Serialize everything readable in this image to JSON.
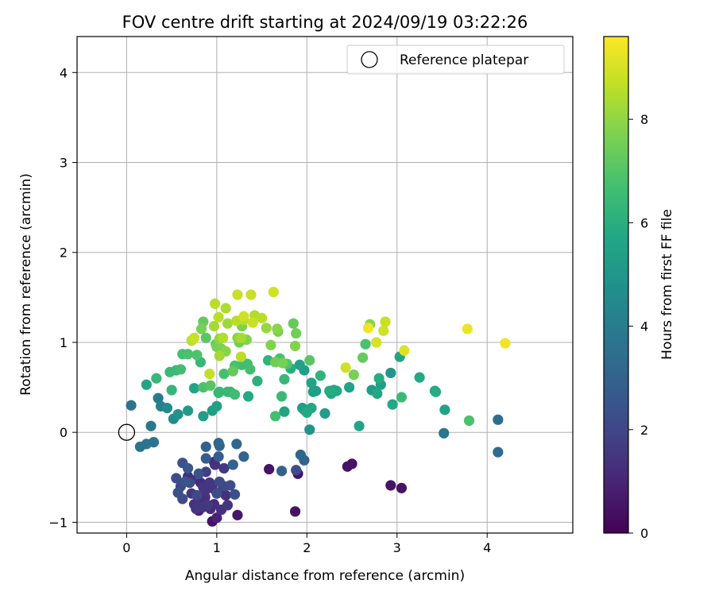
{
  "chart_data": {
    "type": "scatter",
    "title": "FOV centre drift starting at 2024/09/19 03:22:26",
    "xlabel": "Angular distance from reference (arcmin)",
    "ylabel": "Rotation from reference (arcmin)",
    "xlim": [
      -0.55,
      4.95
    ],
    "ylim": [
      -1.12,
      4.4
    ],
    "xticks": [
      "0",
      "1",
      "2",
      "3",
      "4"
    ],
    "yticks": [
      "−1",
      "0",
      "1",
      "2",
      "3",
      "4"
    ],
    "grid": true,
    "legend": {
      "placement": "upper-right",
      "entries": [
        "Reference platepar"
      ]
    },
    "reference_point": {
      "x": 0,
      "y": 0
    },
    "colorbar": {
      "label": "Hours from first FF file",
      "min": 0,
      "max": 9.6,
      "ticks": [
        "0",
        "2",
        "4",
        "6",
        "8"
      ],
      "colormap": "viridis"
    },
    "series": [
      {
        "color_by": "hours",
        "points": [
          [
            0.05,
            0.3,
            3.6
          ],
          [
            0.15,
            -0.16,
            3.7
          ],
          [
            0.22,
            -0.13,
            3.7
          ],
          [
            0.3,
            -0.11,
            3.6
          ],
          [
            0.27,
            0.07,
            3.8
          ],
          [
            0.35,
            0.38,
            3.9
          ],
          [
            0.22,
            0.53,
            5.6
          ],
          [
            0.33,
            0.6,
            6.4
          ],
          [
            0.38,
            0.29,
            4.2
          ],
          [
            0.45,
            0.27,
            4.6
          ],
          [
            0.5,
            0.47,
            6.3
          ],
          [
            0.48,
            0.67,
            6.5
          ],
          [
            0.52,
            0.15,
            4.6
          ],
          [
            0.57,
            0.2,
            4.9
          ],
          [
            0.55,
            0.69,
            6.5
          ],
          [
            0.6,
            0.7,
            6.6
          ],
          [
            0.62,
            0.87,
            6.7
          ],
          [
            0.68,
            0.87,
            6.8
          ],
          [
            0.68,
            0.24,
            5.2
          ],
          [
            0.75,
            0.49,
            5.6
          ],
          [
            0.78,
            0.86,
            6.9
          ],
          [
            0.72,
            1.02,
            8.6
          ],
          [
            0.75,
            1.05,
            8.8
          ],
          [
            0.82,
            0.78,
            6.4
          ],
          [
            0.85,
            0.5,
            6.8
          ],
          [
            0.85,
            1.23,
            7.3
          ],
          [
            0.83,
            1.15,
            7.6
          ],
          [
            0.88,
            1.05,
            7.1
          ],
          [
            0.85,
            0.18,
            5.3
          ],
          [
            0.92,
            0.65,
            8.7
          ],
          [
            0.93,
            0.52,
            7.0
          ],
          [
            0.95,
            0.24,
            5.3
          ],
          [
            0.97,
            1.18,
            8.3
          ],
          [
            0.98,
            1.43,
            8.6
          ],
          [
            0.99,
            0.98,
            7.3
          ],
          [
            1.0,
            0.95,
            7.6
          ],
          [
            1.0,
            0.29,
            5.4
          ],
          [
            1.02,
            0.44,
            6.3
          ],
          [
            1.03,
            0.45,
            6.4
          ],
          [
            1.02,
            1.28,
            8.6
          ],
          [
            1.03,
            0.85,
            8.3
          ],
          [
            1.05,
            0.93,
            7.7
          ],
          [
            1.03,
            1.04,
            8.0
          ],
          [
            1.07,
            1.05,
            8.5
          ],
          [
            1.08,
            0.65,
            6.7
          ],
          [
            1.1,
            0.9,
            7.9
          ],
          [
            1.1,
            1.38,
            8.4
          ],
          [
            1.12,
            1.21,
            8.2
          ],
          [
            1.12,
            0.45,
            6.4
          ],
          [
            1.15,
            0.45,
            6.4
          ],
          [
            1.18,
            0.68,
            7.3
          ],
          [
            1.2,
            0.74,
            6.8
          ],
          [
            1.2,
            0.42,
            6.6
          ],
          [
            1.22,
            1.24,
            8.6
          ],
          [
            1.23,
            1.05,
            7.9
          ],
          [
            1.23,
            1.53,
            8.8
          ],
          [
            1.25,
            1.0,
            7.5
          ],
          [
            1.27,
            1.05,
            8.3
          ],
          [
            1.27,
            0.84,
            8.6
          ],
          [
            1.28,
            0.75,
            6.6
          ],
          [
            1.28,
            1.18,
            7.7
          ],
          [
            1.3,
            1.29,
            8.9
          ],
          [
            1.3,
            1.25,
            8.5
          ],
          [
            1.33,
            1.03,
            7.8
          ],
          [
            1.34,
            0.76,
            6.6
          ],
          [
            1.37,
            0.7,
            6.7
          ],
          [
            1.35,
            0.4,
            5.8
          ],
          [
            1.38,
            1.53,
            8.8
          ],
          [
            1.4,
            1.22,
            8.8
          ],
          [
            1.42,
            1.3,
            8.5
          ],
          [
            1.45,
            0.57,
            6.1
          ],
          [
            1.5,
            1.27,
            8.6
          ],
          [
            1.55,
            1.16,
            8.1
          ],
          [
            1.57,
            0.8,
            6.2
          ],
          [
            1.6,
            0.97,
            7.8
          ],
          [
            1.63,
            1.56,
            8.9
          ],
          [
            1.65,
            0.18,
            6.7
          ],
          [
            1.65,
            0.78,
            7.5
          ],
          [
            1.67,
            1.15,
            7.9
          ],
          [
            1.68,
            1.12,
            7.6
          ],
          [
            1.7,
            0.82,
            6.8
          ],
          [
            1.72,
            0.4,
            6.5
          ],
          [
            1.73,
            0.77,
            7.6
          ],
          [
            1.75,
            0.59,
            6.4
          ],
          [
            1.75,
            0.23,
            5.6
          ],
          [
            1.78,
            0.76,
            7.0
          ],
          [
            1.82,
            0.71,
            5.9
          ],
          [
            1.85,
            1.21,
            7.3
          ],
          [
            1.87,
            0.96,
            7.8
          ],
          [
            1.88,
            1.1,
            7.5
          ],
          [
            1.92,
            0.75,
            5.5
          ],
          [
            1.95,
            0.27,
            5.2
          ],
          [
            1.97,
            0.25,
            5.4
          ],
          [
            1.97,
            0.69,
            5.3
          ],
          [
            2.0,
            0.22,
            5.8
          ],
          [
            2.03,
            0.8,
            7.1
          ],
          [
            2.03,
            0.03,
            4.9
          ],
          [
            2.05,
            0.55,
            5.5
          ],
          [
            2.05,
            0.27,
            5.7
          ],
          [
            2.07,
            0.45,
            5.3
          ],
          [
            2.1,
            0.46,
            5.4
          ],
          [
            2.15,
            0.63,
            6.2
          ],
          [
            2.2,
            0.21,
            5.3
          ],
          [
            2.25,
            0.46,
            5.9
          ],
          [
            2.27,
            0.43,
            5.7
          ],
          [
            2.3,
            0.47,
            5.6
          ],
          [
            2.33,
            0.46,
            5.8
          ],
          [
            2.43,
            0.72,
            8.9
          ],
          [
            2.47,
            0.5,
            5.5
          ],
          [
            2.52,
            0.64,
            7.6
          ],
          [
            2.58,
            0.07,
            5.6
          ],
          [
            2.62,
            0.83,
            7.3
          ],
          [
            2.65,
            0.98,
            6.8
          ],
          [
            2.68,
            1.16,
            9.4
          ],
          [
            2.7,
            1.2,
            7.9
          ],
          [
            2.72,
            0.47,
            5.2
          ],
          [
            2.77,
            1.0,
            9.0
          ],
          [
            2.78,
            0.43,
            5.7
          ],
          [
            2.8,
            0.6,
            5.9
          ],
          [
            2.82,
            0.53,
            5.4
          ],
          [
            2.85,
            1.13,
            8.9
          ],
          [
            2.87,
            1.23,
            8.8
          ],
          [
            2.93,
            0.66,
            5.0
          ],
          [
            2.95,
            0.31,
            5.8
          ],
          [
            3.03,
            0.84,
            5.6
          ],
          [
            3.05,
            0.39,
            6.5
          ],
          [
            3.08,
            0.91,
            9.1
          ],
          [
            3.25,
            0.61,
            5.8
          ],
          [
            3.42,
            0.46,
            5.6
          ],
          [
            3.43,
            0.45,
            5.9
          ],
          [
            3.53,
            0.25,
            5.5
          ],
          [
            3.52,
            -0.01,
            3.8
          ],
          [
            3.78,
            1.15,
            9.3
          ],
          [
            3.8,
            0.13,
            6.8
          ],
          [
            4.12,
            0.14,
            3.4
          ],
          [
            4.12,
            -0.22,
            3.4
          ],
          [
            4.2,
            0.99,
            9.4
          ],
          [
            0.55,
            -0.51,
            2.2
          ],
          [
            0.57,
            -0.67,
            2.3
          ],
          [
            0.6,
            -0.6,
            2.0
          ],
          [
            0.62,
            -0.74,
            2.2
          ],
          [
            0.62,
            -0.34,
            2.4
          ],
          [
            0.65,
            -0.55,
            2.5
          ],
          [
            0.68,
            -0.4,
            2.6
          ],
          [
            0.68,
            -0.49,
            1.3
          ],
          [
            0.7,
            -0.56,
            2.1
          ],
          [
            0.72,
            -0.53,
            1.3
          ],
          [
            0.72,
            -0.68,
            1.5
          ],
          [
            0.75,
            -0.8,
            1.4
          ],
          [
            0.77,
            -0.85,
            1.5
          ],
          [
            0.78,
            -0.7,
            2.1
          ],
          [
            0.8,
            -0.87,
            1.0
          ],
          [
            0.82,
            -0.79,
            1.3
          ],
          [
            0.82,
            -0.56,
            1.2
          ],
          [
            0.8,
            -0.46,
            2.5
          ],
          [
            0.85,
            -0.83,
            1.5
          ],
          [
            0.85,
            -0.61,
            1.5
          ],
          [
            0.87,
            -0.65,
            1.4
          ],
          [
            0.87,
            -0.72,
            1.3
          ],
          [
            0.88,
            -0.16,
            3.0
          ],
          [
            0.88,
            -0.29,
            2.8
          ],
          [
            0.88,
            -0.44,
            1.7
          ],
          [
            0.9,
            -0.81,
            1.6
          ],
          [
            0.92,
            -0.56,
            1.5
          ],
          [
            0.93,
            -0.85,
            1.2
          ],
          [
            0.95,
            -0.99,
            0.5
          ],
          [
            0.95,
            -0.62,
            1.4
          ],
          [
            0.97,
            -0.33,
            1.0
          ],
          [
            0.97,
            -0.8,
            1.2
          ],
          [
            0.98,
            -0.36,
            1.4
          ],
          [
            1.0,
            -0.68,
            2.2
          ],
          [
            1.0,
            -0.95,
            0.9
          ],
          [
            1.02,
            -0.12,
            3.2
          ],
          [
            1.02,
            -0.27,
            2.8
          ],
          [
            1.03,
            -0.55,
            2.2
          ],
          [
            1.03,
            -0.15,
            3.0
          ],
          [
            1.05,
            -0.86,
            1.3
          ],
          [
            1.07,
            -0.62,
            1.1
          ],
          [
            1.08,
            -0.4,
            1.6
          ],
          [
            1.08,
            -0.6,
            2.1
          ],
          [
            1.1,
            -0.7,
            1.3
          ],
          [
            1.12,
            -0.81,
            1.5
          ],
          [
            1.15,
            -0.59,
            2.2
          ],
          [
            1.18,
            -0.36,
            3.0
          ],
          [
            1.2,
            -0.69,
            2.3
          ],
          [
            1.22,
            -0.13,
            3.2
          ],
          [
            1.23,
            -0.92,
            0.6
          ],
          [
            1.3,
            -0.27,
            3.0
          ],
          [
            1.58,
            -0.41,
            0.5
          ],
          [
            1.72,
            -0.43,
            3.0
          ],
          [
            1.87,
            -0.88,
            0.5
          ],
          [
            1.88,
            -0.42,
            2.2
          ],
          [
            1.9,
            -0.46,
            0.5
          ],
          [
            1.93,
            -0.25,
            3.2
          ],
          [
            1.97,
            -0.31,
            3.0
          ],
          [
            2.45,
            -0.38,
            0.5
          ],
          [
            2.5,
            -0.35,
            0.5
          ],
          [
            2.93,
            -0.59,
            0.5
          ],
          [
            3.05,
            -0.62,
            0.5
          ]
        ]
      }
    ]
  }
}
